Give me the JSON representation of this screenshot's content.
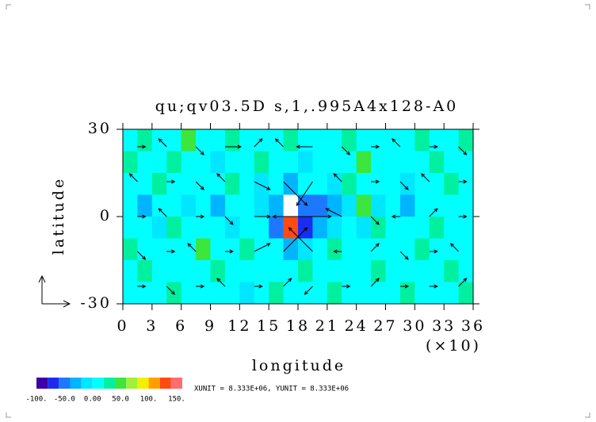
{
  "chart_data": {
    "type": "heatmap",
    "title": "qu;qv03.5D s,1,.995A4x128-A0",
    "x_label": "longitude",
    "x_multiplier": "(×10)",
    "y_label": "latitude",
    "xlim": [
      0,
      36
    ],
    "ylim": [
      -30,
      30
    ],
    "xticks": [
      0,
      3,
      6,
      9,
      12,
      15,
      18,
      21,
      24,
      27,
      30,
      33,
      36
    ],
    "yticks": [
      -30,
      0,
      30
    ],
    "field": [
      [
        10,
        30,
        10,
        10,
        45,
        10,
        10,
        30,
        10,
        10,
        10,
        35,
        10,
        10,
        10,
        30,
        10,
        10,
        10,
        10,
        30,
        10,
        10,
        30
      ],
      [
        30,
        10,
        10,
        30,
        10,
        10,
        -10,
        10,
        10,
        30,
        10,
        10,
        -10,
        10,
        10,
        10,
        50,
        10,
        10,
        10,
        10,
        30,
        10,
        10
      ],
      [
        10,
        10,
        30,
        10,
        10,
        10,
        10,
        30,
        10,
        -10,
        10,
        -30,
        10,
        10,
        -10,
        30,
        10,
        10,
        10,
        -10,
        10,
        10,
        30,
        10
      ],
      [
        10,
        -30,
        10,
        10,
        -10,
        10,
        -30,
        10,
        10,
        -10,
        -30,
        200,
        -50,
        -50,
        -30,
        -10,
        50,
        -10,
        10,
        -30,
        10,
        10,
        10,
        10
      ],
      [
        10,
        10,
        -10,
        30,
        10,
        10,
        10,
        -10,
        10,
        10,
        -50,
        130,
        -70,
        -30,
        -10,
        10,
        -10,
        30,
        10,
        10,
        10,
        30,
        10,
        10
      ],
      [
        30,
        10,
        10,
        10,
        10,
        50,
        10,
        10,
        30,
        10,
        10,
        -30,
        -10,
        10,
        30,
        10,
        10,
        10,
        10,
        10,
        30,
        10,
        10,
        10
      ],
      [
        10,
        30,
        10,
        10,
        10,
        10,
        30,
        10,
        10,
        10,
        10,
        10,
        30,
        10,
        10,
        10,
        10,
        30,
        10,
        10,
        10,
        10,
        30,
        10
      ],
      [
        10,
        10,
        10,
        30,
        10,
        10,
        10,
        10,
        -10,
        10,
        30,
        10,
        10,
        10,
        30,
        10,
        10,
        10,
        10,
        30,
        10,
        10,
        10,
        30
      ]
    ],
    "levels": [
      -100,
      -80,
      -60,
      -40,
      -20,
      0,
      20,
      40,
      60,
      80,
      100,
      120,
      140,
      160
    ],
    "colors": [
      "#3c00a8",
      "#1a2cf0",
      "#1e78ff",
      "#00b4ff",
      "#00e6ff",
      "#00ffff",
      "#00f0a0",
      "#3ce63c",
      "#a0f03c",
      "#f0f000",
      "#ffa000",
      "#ff4a14",
      "#ff6e6e"
    ],
    "colorbar_ticks": [
      {
        "value": -100,
        "label": "-100."
      },
      {
        "value": -50,
        "label": "-50.0"
      },
      {
        "value": 0,
        "label": "0.00"
      },
      {
        "value": 50,
        "label": "50.0"
      },
      {
        "value": 100,
        "label": "100."
      },
      {
        "value": 150,
        "label": "150."
      }
    ],
    "vectors": {
      "x": [
        1.5,
        4.5,
        7.5,
        10.5,
        13.5,
        16.5,
        19.5,
        22.5,
        25.5,
        28.5,
        31.5,
        34.5
      ],
      "y": [
        24,
        12,
        0,
        -12,
        -24
      ],
      "u": [
        [
          1,
          -1,
          1,
          2,
          1,
          -1,
          -2,
          1,
          1,
          -1,
          1,
          1
        ],
        [
          -1,
          1,
          1,
          -1,
          2,
          3,
          -2,
          -1,
          1,
          1,
          -1,
          1
        ],
        [
          1,
          -1,
          1,
          1,
          2,
          6,
          -5,
          -2,
          1,
          -1,
          1,
          1
        ],
        [
          1,
          1,
          -1,
          1,
          2,
          3,
          -3,
          -1,
          1,
          1,
          1,
          -1
        ],
        [
          1,
          1,
          1,
          -1,
          1,
          1,
          -1,
          1,
          1,
          1,
          1,
          1
        ]
      ],
      "v": [
        [
          0,
          1,
          -1,
          0,
          1,
          1,
          0,
          -1,
          0,
          1,
          0,
          -1
        ],
        [
          1,
          0,
          -1,
          1,
          -1,
          -3,
          -3,
          1,
          0,
          -1,
          1,
          0
        ],
        [
          0,
          1,
          0,
          -1,
          0,
          0,
          0,
          1,
          -1,
          0,
          1,
          0
        ],
        [
          -1,
          0,
          1,
          0,
          1,
          3,
          3,
          0,
          1,
          -1,
          0,
          1
        ],
        [
          0,
          -1,
          0,
          1,
          0,
          1,
          -1,
          0,
          1,
          0,
          0,
          1
        ]
      ]
    },
    "unit_text": "XUNIT = 8.333E+06, YUNIT = 8.333E+06"
  }
}
